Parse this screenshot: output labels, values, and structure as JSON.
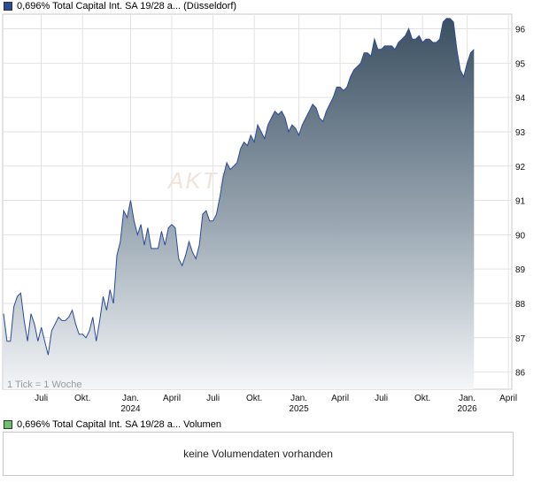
{
  "price_legend": {
    "label": "0,696% Total Capital Int. SA 19/28 a... (Düsseldorf)",
    "color": "#2a4a9a"
  },
  "volume_legend": {
    "label": "0,696% Total Capital Int. SA 19/28 a... Volumen",
    "color": "#6cc06c"
  },
  "volume_panel": {
    "message": "keine Volumendaten vorhanden"
  },
  "tick_note": "1 Tick = 1 Woche",
  "watermark": "AKTI",
  "chart_data": {
    "type": "area",
    "ylim": [
      85.5,
      96.4
    ],
    "y_ticks": [
      86,
      87,
      88,
      89,
      90,
      91,
      92,
      93,
      94,
      95,
      96
    ],
    "x_range": [
      0,
      148
    ],
    "x_ticks": [
      {
        "x": 11,
        "label": "Juli",
        "sub": ""
      },
      {
        "x": 23,
        "label": "Okt.",
        "sub": ""
      },
      {
        "x": 37,
        "label": "Jan.",
        "sub": "2024"
      },
      {
        "x": 49,
        "label": "April",
        "sub": ""
      },
      {
        "x": 61,
        "label": "Juli",
        "sub": ""
      },
      {
        "x": 73,
        "label": "Okt.",
        "sub": ""
      },
      {
        "x": 86,
        "label": "Jan.",
        "sub": "2025"
      },
      {
        "x": 98,
        "label": "April",
        "sub": ""
      },
      {
        "x": 110,
        "label": "Juli",
        "sub": ""
      },
      {
        "x": 122,
        "label": "Okt.",
        "sub": ""
      },
      {
        "x": 135,
        "label": "Jan.",
        "sub": "2026"
      },
      {
        "x": 147,
        "label": "April",
        "sub": ""
      }
    ],
    "series": [
      {
        "values": [
          [
            0,
            87.7
          ],
          [
            1,
            86.9
          ],
          [
            2,
            86.9
          ],
          [
            3,
            87.9
          ],
          [
            4,
            88.2
          ],
          [
            5,
            88.3
          ],
          [
            6,
            87.5
          ],
          [
            7,
            86.9
          ],
          [
            8,
            87.7
          ],
          [
            9,
            87.4
          ],
          [
            10,
            86.9
          ],
          [
            11,
            87.3
          ],
          [
            12,
            86.9
          ],
          [
            13,
            86.5
          ],
          [
            14,
            87.2
          ],
          [
            15,
            87.4
          ],
          [
            16,
            87.6
          ],
          [
            17,
            87.5
          ],
          [
            18,
            87.5
          ],
          [
            19,
            87.6
          ],
          [
            20,
            87.8
          ],
          [
            21,
            87.4
          ],
          [
            22,
            87.1
          ],
          [
            23,
            87.1
          ],
          [
            24,
            87.0
          ],
          [
            25,
            87.2
          ],
          [
            26,
            87.6
          ],
          [
            27,
            86.9
          ],
          [
            28,
            87.5
          ],
          [
            29,
            88.2
          ],
          [
            30,
            87.8
          ],
          [
            31,
            88.4
          ],
          [
            32,
            88.0
          ],
          [
            33,
            89.4
          ],
          [
            34,
            89.8
          ],
          [
            35,
            90.7
          ],
          [
            36,
            90.5
          ],
          [
            37,
            91.0
          ],
          [
            38,
            90.4
          ],
          [
            39,
            90.0
          ],
          [
            40,
            90.3
          ],
          [
            41,
            89.7
          ],
          [
            42,
            90.2
          ],
          [
            43,
            89.6
          ],
          [
            44,
            89.6
          ],
          [
            45,
            89.6
          ],
          [
            46,
            90.1
          ],
          [
            47,
            89.7
          ],
          [
            48,
            90.2
          ],
          [
            49,
            90.3
          ],
          [
            50,
            90.2
          ],
          [
            51,
            89.3
          ],
          [
            52,
            89.1
          ],
          [
            53,
            89.4
          ],
          [
            54,
            89.8
          ],
          [
            55,
            89.5
          ],
          [
            56,
            89.3
          ],
          [
            57,
            89.7
          ],
          [
            58,
            90.6
          ],
          [
            59,
            90.7
          ],
          [
            60,
            90.4
          ],
          [
            61,
            90.4
          ],
          [
            62,
            90.6
          ],
          [
            63,
            91.1
          ],
          [
            64,
            91.7
          ],
          [
            65,
            92.1
          ],
          [
            66,
            91.9
          ],
          [
            67,
            92.0
          ],
          [
            68,
            92.1
          ],
          [
            69,
            92.5
          ],
          [
            70,
            92.7
          ],
          [
            71,
            92.6
          ],
          [
            72,
            92.9
          ],
          [
            73,
            92.7
          ],
          [
            74,
            93.2
          ],
          [
            75,
            93.0
          ],
          [
            76,
            92.8
          ],
          [
            77,
            93.2
          ],
          [
            78,
            93.4
          ],
          [
            79,
            93.6
          ],
          [
            80,
            93.5
          ],
          [
            81,
            93.6
          ],
          [
            82,
            93.4
          ],
          [
            83,
            93.0
          ],
          [
            84,
            93.2
          ],
          [
            85,
            93.1
          ],
          [
            86,
            92.9
          ],
          [
            87,
            93.2
          ],
          [
            88,
            93.4
          ],
          [
            89,
            93.6
          ],
          [
            90,
            93.8
          ],
          [
            91,
            93.7
          ],
          [
            92,
            93.4
          ],
          [
            93,
            93.3
          ],
          [
            94,
            93.6
          ],
          [
            95,
            93.8
          ],
          [
            96,
            94.0
          ],
          [
            97,
            94.3
          ],
          [
            98,
            94.3
          ],
          [
            99,
            94.2
          ],
          [
            100,
            94.3
          ],
          [
            101,
            94.6
          ],
          [
            102,
            94.8
          ],
          [
            103,
            94.9
          ],
          [
            104,
            95.0
          ],
          [
            105,
            95.3
          ],
          [
            106,
            95.3
          ],
          [
            107,
            95.2
          ],
          [
            108,
            95.7
          ],
          [
            109,
            95.4
          ],
          [
            110,
            95.4
          ],
          [
            111,
            95.5
          ],
          [
            112,
            95.5
          ],
          [
            113,
            95.5
          ],
          [
            114,
            95.4
          ],
          [
            115,
            95.6
          ],
          [
            116,
            95.7
          ],
          [
            117,
            95.8
          ],
          [
            118,
            96.0
          ],
          [
            119,
            95.7
          ],
          [
            120,
            95.7
          ],
          [
            121,
            95.8
          ],
          [
            122,
            95.6
          ],
          [
            123,
            95.7
          ],
          [
            124,
            95.7
          ],
          [
            125,
            95.6
          ],
          [
            126,
            95.6
          ],
          [
            127,
            95.7
          ],
          [
            128,
            96.2
          ],
          [
            129,
            96.3
          ],
          [
            130,
            96.3
          ],
          [
            131,
            96.2
          ],
          [
            132,
            95.4
          ],
          [
            133,
            94.8
          ],
          [
            134,
            94.6
          ],
          [
            135,
            95.0
          ],
          [
            136,
            95.3
          ],
          [
            137,
            95.4
          ]
        ]
      }
    ]
  }
}
